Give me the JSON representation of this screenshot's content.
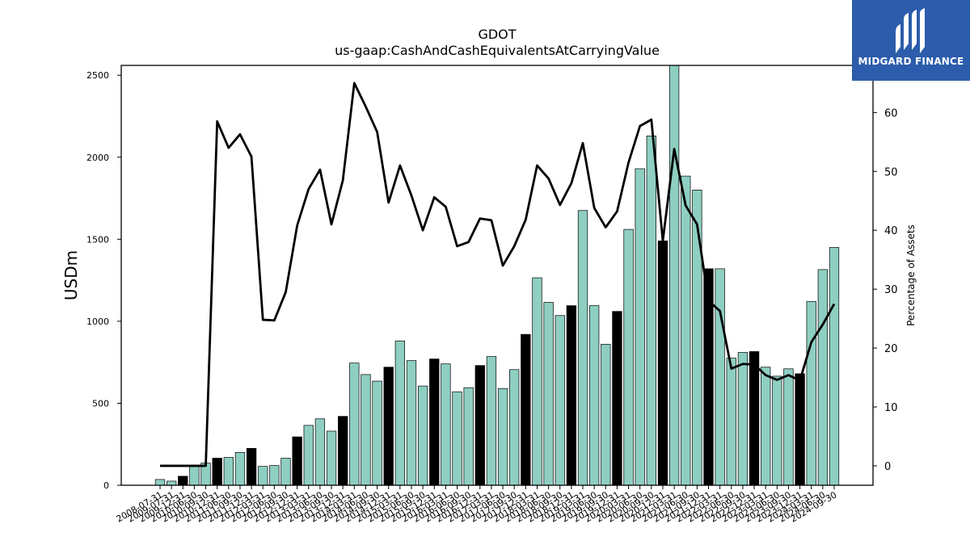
{
  "brand": {
    "name": "MIDGARD FINANCE",
    "bg_color": "#2c5cab"
  },
  "chart_data": {
    "type": "bar",
    "title": "GDOT",
    "subtitle": "us-gaap:CashAndCashEquivalentsAtCarryingValue",
    "ylabel": "USDm",
    "y2label": "Percentage of Assets",
    "ylim": [
      0,
      2560
    ],
    "y2lim": [
      -3.3,
      68
    ],
    "yticks": [
      0,
      500,
      1000,
      1500,
      2000,
      2500
    ],
    "y2ticks": [
      0,
      10,
      20,
      30,
      40,
      50,
      60
    ],
    "bar_color": "#8ecfc2",
    "highlight_color": "#000000",
    "line_color": "#000000",
    "categories": [
      "2008-07-31",
      "2009-07-31",
      "2009-12-31",
      "2010-06-30",
      "2010-09-30",
      "2010-12-31",
      "2011-06-30",
      "2011-09-30",
      "2011-12-31",
      "2012-03-31",
      "2012-06-30",
      "2012-09-30",
      "2012-12-31",
      "2013-03-31",
      "2013-06-30",
      "2013-09-30",
      "2013-12-31",
      "2014-03-31",
      "2014-06-30",
      "2014-09-30",
      "2014-12-31",
      "2015-03-31",
      "2015-06-30",
      "2015-09-30",
      "2015-12-31",
      "2016-03-31",
      "2016-06-30",
      "2016-09-30",
      "2016-12-31",
      "2017-03-31",
      "2017-06-30",
      "2017-09-30",
      "2017-12-31",
      "2018-03-31",
      "2018-06-30",
      "2018-09-30",
      "2018-12-31",
      "2019-03-31",
      "2019-06-30",
      "2019-09-30",
      "2019-12-31",
      "2020-03-31",
      "2020-06-30",
      "2020-09-30",
      "2020-12-31",
      "2021-03-31",
      "2021-06-30",
      "2021-09-30",
      "2021-12-31",
      "2022-03-31",
      "2022-06-30",
      "2022-09-30",
      "2022-12-31",
      "2023-03-31",
      "2023-06-30",
      "2023-09-30",
      "2023-12-31",
      "2024-03-31",
      "2024-06-30",
      "2024-09-30"
    ],
    "series": [
      {
        "values": [
          35,
          25,
          55,
          115,
          135,
          165,
          170,
          200,
          225,
          115,
          120,
          165,
          295,
          365,
          405,
          330,
          420,
          745,
          675,
          635,
          720,
          880,
          760,
          605,
          770,
          740,
          570,
          595,
          730,
          785,
          590,
          705,
          920,
          1265,
          1115,
          1035,
          1095,
          1675,
          1095,
          860,
          1060,
          1560,
          1930,
          2130,
          1490,
          2560,
          1885,
          1800,
          1320,
          1320,
          775,
          810,
          815,
          720,
          665,
          710,
          680,
          1120,
          1315,
          1450
        ],
        "highlight": [
          false,
          false,
          true,
          false,
          false,
          true,
          false,
          false,
          true,
          false,
          false,
          false,
          true,
          false,
          false,
          false,
          true,
          false,
          false,
          false,
          true,
          false,
          false,
          false,
          true,
          false,
          false,
          false,
          true,
          false,
          false,
          false,
          true,
          false,
          false,
          false,
          true,
          false,
          false,
          false,
          true,
          false,
          false,
          false,
          true,
          false,
          false,
          false,
          true,
          false,
          false,
          false,
          true,
          false,
          false,
          false,
          true,
          false,
          false,
          false
        ]
      },
      {
        "axis": "right",
        "type": "line",
        "values": [
          0,
          0,
          0,
          0,
          0,
          58.5,
          54,
          56.3,
          52.5,
          24.8,
          24.7,
          29.5,
          40.8,
          47,
          50.3,
          41,
          48.5,
          65,
          61,
          56.7,
          44.7,
          51,
          45.9,
          40,
          45.6,
          44,
          37.3,
          38,
          42,
          41.7,
          34,
          37.3,
          41.8,
          51,
          48.8,
          44.3,
          48,
          54.8,
          43.8,
          40.5,
          43.2,
          51.5,
          57.7,
          58.8,
          38.2,
          53.8,
          44.2,
          41,
          28,
          26.3,
          16.5,
          17.3,
          17.2,
          15.4,
          14.6,
          15.4,
          14.5,
          21,
          24,
          27.5
        ],
        "start_index": 0,
        "drawn_from_index": 0
      }
    ],
    "grid": false
  }
}
